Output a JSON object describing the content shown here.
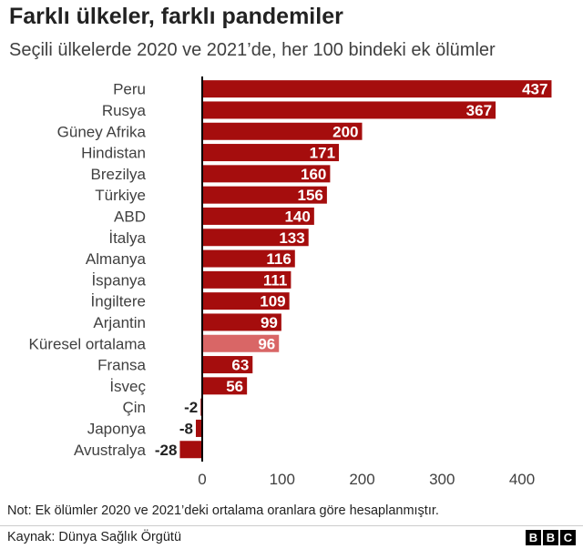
{
  "title": "Farklı ülkeler, farklı pandemiler",
  "subtitle": "Seçili ülkelerde 2020 ve 2021’de, her 100 bindeki ek ölümler",
  "note": "Not: Ek ölümler 2020 ve 2021’deki ortalama oranlara göre hesaplanmıştır.",
  "source": "Kaynak: Dünya Sağlık Örgütü",
  "logo": [
    "B",
    "B",
    "C"
  ],
  "colors": {
    "bar": "#a50d0d",
    "highlight": "#d96666",
    "axis": "#000000",
    "tick_label": "#404040"
  },
  "chart_data": {
    "type": "bar",
    "orientation": "horizontal",
    "categories": [
      "Peru",
      "Rusya",
      "Güney Afrika",
      "Hindistan",
      "Brezilya",
      "Türkiye",
      "ABD",
      "İtalya",
      "Almanya",
      "İspanya",
      "İngiltere",
      "Arjantin",
      "Küresel ortalama",
      "Fransa",
      "İsveç",
      "Çin",
      "Japonya",
      "Avustralya"
    ],
    "values": [
      437,
      367,
      200,
      171,
      160,
      156,
      140,
      133,
      116,
      111,
      109,
      99,
      96,
      63,
      56,
      -2,
      -8,
      -28
    ],
    "highlight": "Küresel ortalama",
    "xticks": [
      0,
      100,
      200,
      300,
      400
    ],
    "xlim": [
      -40,
      450
    ],
    "grid": false
  }
}
